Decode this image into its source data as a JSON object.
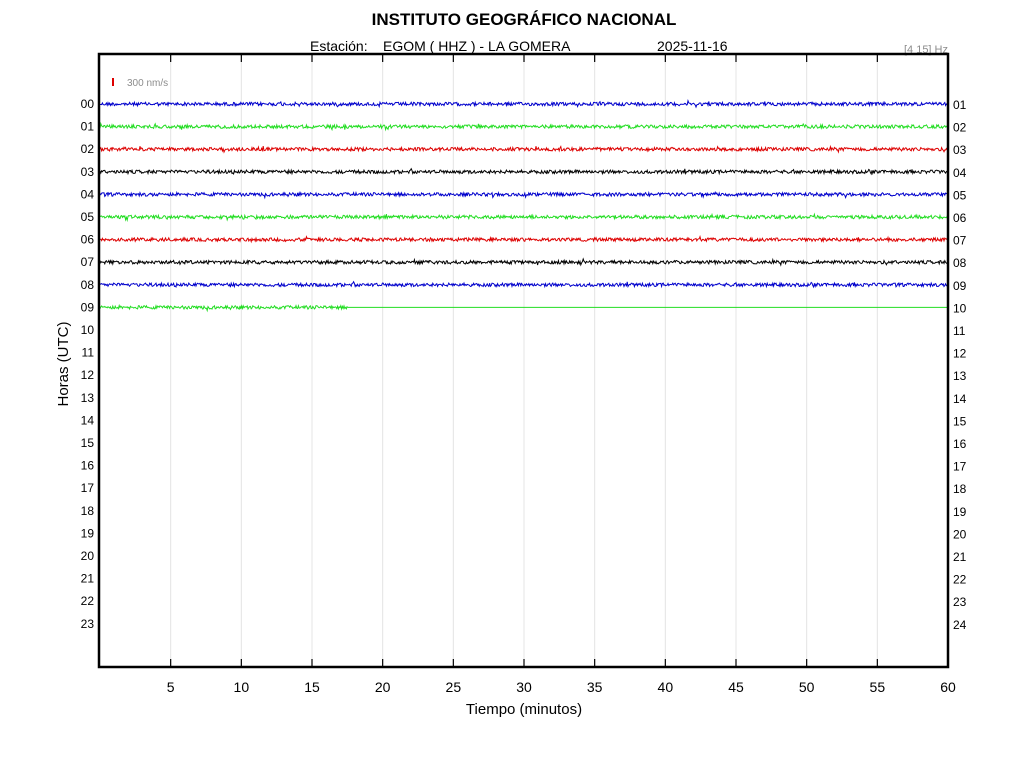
{
  "chart_data": {
    "type": "line",
    "title": "INSTITUTO GEOGRÁFICO NACIONAL",
    "station_label": "Estación:",
    "station": "EGOM ( HHZ ) - LA GOMERA",
    "date": "2025-11-16",
    "filter": "[4 15] Hz",
    "scale_bar": "300 nm/s",
    "xlabel": "Tiempo (minutos)",
    "ylabel": "Horas (UTC)",
    "xlim": [
      0,
      60
    ],
    "x_ticks": [
      "5",
      "10",
      "15",
      "20",
      "25",
      "30",
      "35",
      "40",
      "45",
      "50",
      "55",
      "60"
    ],
    "left_hours": [
      "00",
      "01",
      "02",
      "03",
      "04",
      "05",
      "06",
      "07",
      "08",
      "09",
      "10",
      "11",
      "12",
      "13",
      "14",
      "15",
      "16",
      "17",
      "18",
      "19",
      "20",
      "21",
      "22",
      "23"
    ],
    "right_hours": [
      "01",
      "02",
      "03",
      "04",
      "05",
      "06",
      "07",
      "08",
      "09",
      "10",
      "11",
      "12",
      "13",
      "14",
      "15",
      "16",
      "17",
      "18",
      "19",
      "20",
      "21",
      "22",
      "23",
      "24"
    ],
    "grid": true,
    "colors": [
      "#0000cc",
      "#22dd22",
      "#dd0000",
      "#000000"
    ],
    "traces": [
      {
        "hour": "00",
        "start_min": 0,
        "end_min": 60,
        "color": "#0000cc"
      },
      {
        "hour": "01",
        "start_min": 0,
        "end_min": 60,
        "color": "#22dd22"
      },
      {
        "hour": "02",
        "start_min": 0,
        "end_min": 60,
        "color": "#dd0000"
      },
      {
        "hour": "03",
        "start_min": 0,
        "end_min": 60,
        "color": "#000000"
      },
      {
        "hour": "04",
        "start_min": 0,
        "end_min": 60,
        "color": "#0000cc"
      },
      {
        "hour": "05",
        "start_min": 0,
        "end_min": 60,
        "color": "#22dd22"
      },
      {
        "hour": "06",
        "start_min": 0,
        "end_min": 60,
        "color": "#dd0000"
      },
      {
        "hour": "07",
        "start_min": 0,
        "end_min": 60,
        "color": "#000000"
      },
      {
        "hour": "08",
        "start_min": 0,
        "end_min": 60,
        "color": "#0000cc"
      },
      {
        "hour": "09",
        "start_min": 0,
        "end_min": 17.5,
        "color": "#22dd22"
      }
    ]
  }
}
